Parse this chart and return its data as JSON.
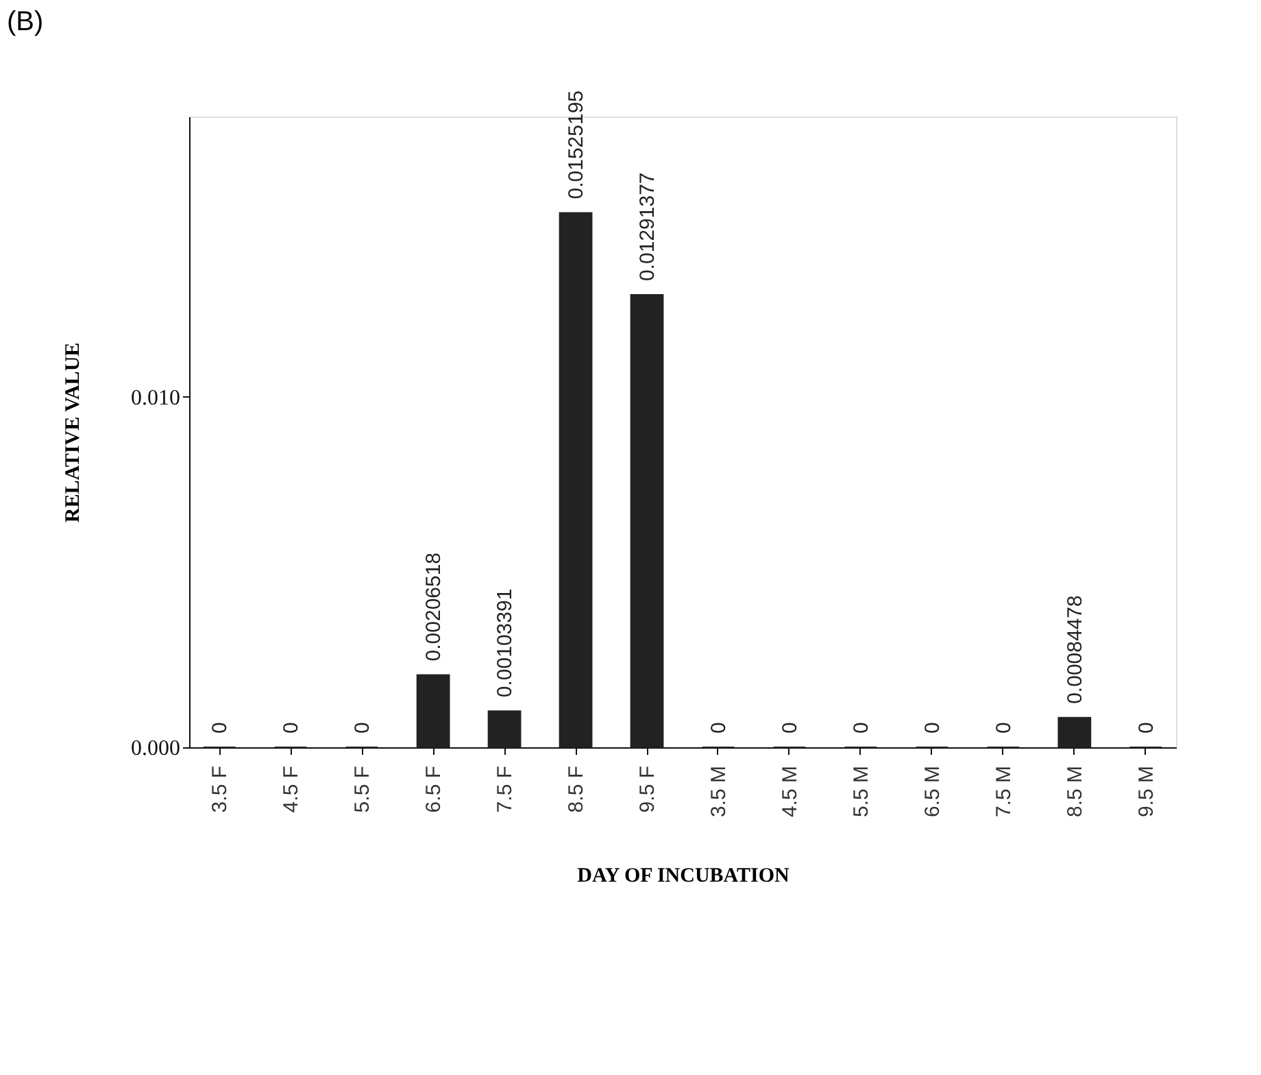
{
  "chart_data": {
    "type": "bar",
    "title": "(B)",
    "xlabel": "DAY OF INCUBATION",
    "ylabel": "RELATIVE VALUE",
    "categories": [
      "3.5 F",
      "4.5 F",
      "5.5 F",
      "6.5 F",
      "7.5 F",
      "8.5 F",
      "9.5 F",
      "3.5 M",
      "4.5 M",
      "5.5 M",
      "6.5 M",
      "7.5 M",
      "8.5 M",
      "9.5 M"
    ],
    "values": [
      0,
      0,
      0,
      0.00206518,
      0.00103391,
      0.01525195,
      0.01291377,
      0,
      0,
      0,
      0,
      0,
      0.00084478,
      0
    ],
    "color": "#222222",
    "ylim": [
      0,
      0.018
    ],
    "yticks": [
      {
        "value": 0,
        "label": "0.000"
      },
      {
        "value": 0.01,
        "label": "0.010"
      }
    ],
    "data_labels": true,
    "grid": false
  }
}
